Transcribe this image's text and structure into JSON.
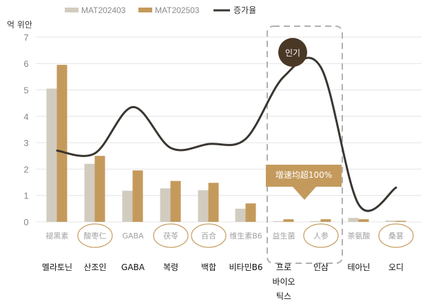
{
  "chart_data": {
    "type": "bar",
    "unit_label": "억 위안",
    "ylim": [
      0,
      7
    ],
    "yticks": [
      "0",
      "1",
      "2",
      "3",
      "4",
      "5",
      "6",
      "7"
    ],
    "grid": true,
    "legend_position": "top",
    "categories_original": [
      "褪黑素",
      "酸枣仁",
      "GABA",
      "茯苓",
      "百合",
      "维生素B6",
      "益生菌",
      "人参",
      "茶氨酸",
      "桑葚"
    ],
    "categories": [
      "멜라토닌",
      "산조인",
      "GABA",
      "복령",
      "백합",
      "비타민B6",
      "프로\n바이오\n틱스",
      "인삼",
      "테아닌",
      "오디"
    ],
    "circled_categories": [
      1,
      3,
      4,
      7,
      9
    ],
    "series": [
      {
        "name": "MAT202403",
        "values": [
          5.05,
          2.2,
          1.18,
          1.27,
          1.2,
          0.5,
          0.03,
          0.03,
          0.15,
          0.05
        ]
      },
      {
        "name": "MAT202503",
        "values": [
          5.95,
          2.5,
          1.95,
          1.55,
          1.48,
          0.7,
          0.1,
          0.1,
          0.1,
          0.04
        ]
      }
    ],
    "growth_line": {
      "name": "증가율",
      "values": [
        2.7,
        2.6,
        4.35,
        2.8,
        2.95,
        3.15,
        5.5,
        5.85,
        0.65,
        1.3
      ]
    },
    "annotations": {
      "badge": "인기",
      "banner": "增速均超100%"
    }
  },
  "colors": {
    "series1": "#d2ccc0",
    "series2": "#c49a5c",
    "line": "#3a3530",
    "badge": "#4a3826",
    "banner": "#c49a5c",
    "grid": "#e4e4e4",
    "highlight_box": "#b0b0b0",
    "circle": "#c49a5c"
  }
}
